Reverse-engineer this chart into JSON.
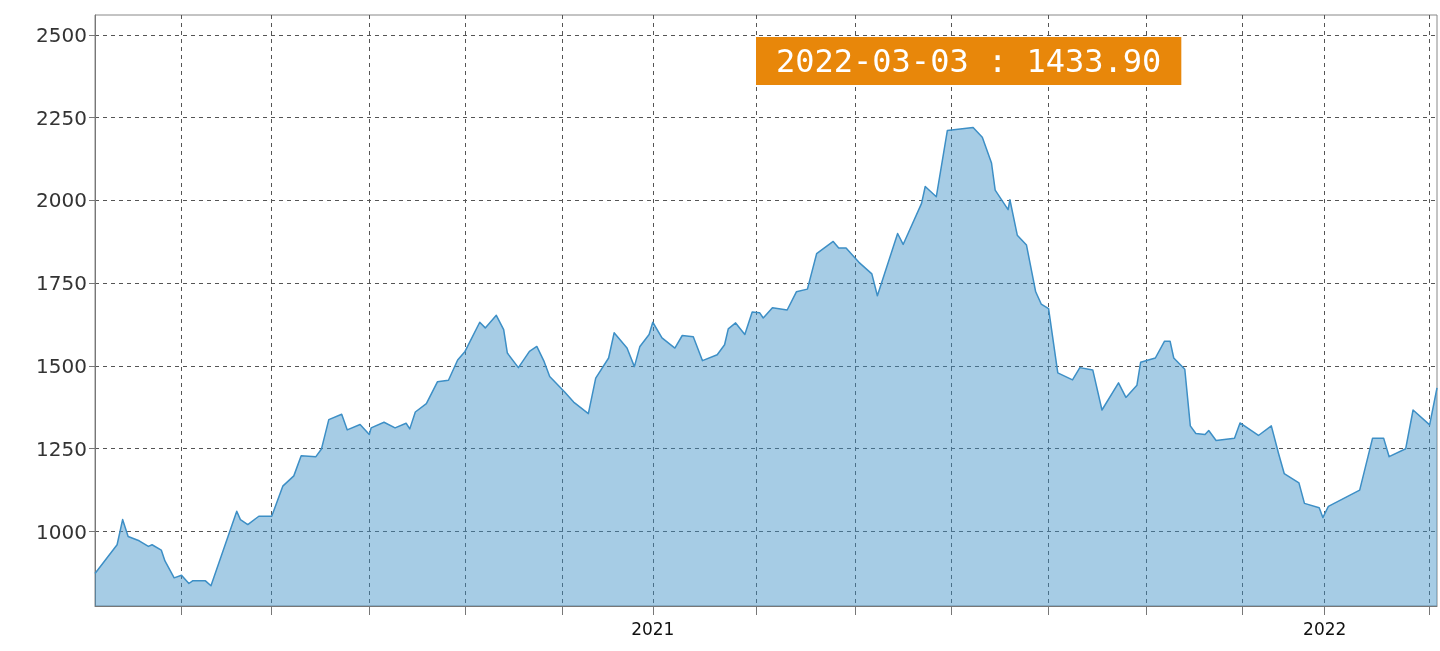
{
  "chart_data": {
    "type": "area",
    "x": [
      "2020-03-04",
      "2020-03-16",
      "2020-03-19",
      "2020-03-22",
      "2020-03-28",
      "2020-04-02",
      "2020-04-04",
      "2020-04-09",
      "2020-04-11",
      "2020-04-16",
      "2020-04-20",
      "2020-04-24",
      "2020-04-26",
      "2020-05-03",
      "2020-05-06",
      "2020-05-20",
      "2020-05-22",
      "2020-05-26",
      "2020-06-01",
      "2020-06-08",
      "2020-06-14",
      "2020-06-20",
      "2020-06-24",
      "2020-07-02",
      "2020-07-05",
      "2020-07-09",
      "2020-07-16",
      "2020-07-19",
      "2020-07-26",
      "2020-07-31",
      "2020-08-01",
      "2020-08-08",
      "2020-08-14",
      "2020-08-20",
      "2020-08-22",
      "2020-08-25",
      "2020-08-31",
      "2020-09-06",
      "2020-09-12",
      "2020-09-17",
      "2020-09-21",
      "2020-09-29",
      "2020-10-02",
      "2020-10-08",
      "2020-10-12",
      "2020-10-14",
      "2020-10-20",
      "2020-10-26",
      "2020-10-30",
      "2020-11-03",
      "2020-11-06",
      "2020-11-14",
      "2020-11-19",
      "2020-11-27",
      "2020-12-01",
      "2020-12-08",
      "2020-12-11",
      "2020-12-18",
      "2020-12-22",
      "2020-12-25",
      "2020-12-30",
      "2021-01-01",
      "2021-01-06",
      "2021-01-13",
      "2021-01-17",
      "2021-01-23",
      "2021-01-28",
      "2021-02-05",
      "2021-02-09",
      "2021-02-11",
      "2021-02-15",
      "2021-02-20",
      "2021-02-24",
      "2021-02-28",
      "2021-03-02",
      "2021-03-07",
      "2021-03-15",
      "2021-03-20",
      "2021-03-26",
      "2021-03-31",
      "2021-04-09",
      "2021-04-12",
      "2021-04-16",
      "2021-04-23",
      "2021-04-30",
      "2021-05-03",
      "2021-05-14",
      "2021-05-17",
      "2021-05-27",
      "2021-05-29",
      "2021-06-04",
      "2021-06-10",
      "2021-06-24",
      "2021-06-29",
      "2021-07-04",
      "2021-07-06",
      "2021-07-13",
      "2021-07-14",
      "2021-07-18",
      "2021-07-23",
      "2021-07-28",
      "2021-07-31",
      "2021-08-04",
      "2021-08-09",
      "2021-08-17",
      "2021-08-21",
      "2021-08-28",
      "2021-09-02",
      "2021-09-11",
      "2021-09-15",
      "2021-09-21",
      "2021-09-23",
      "2021-10-01",
      "2021-10-06",
      "2021-10-09",
      "2021-10-11",
      "2021-10-17",
      "2021-10-20",
      "2021-10-23",
      "2021-10-28",
      "2021-10-30",
      "2021-11-03",
      "2021-11-13",
      "2021-11-16",
      "2021-11-26",
      "2021-12-03",
      "2021-12-07",
      "2021-12-10",
      "2021-12-18",
      "2021-12-21",
      "2021-12-29",
      "2021-12-31",
      "2022-01-03",
      "2022-01-20",
      "2022-01-27",
      "2022-02-02",
      "2022-02-05",
      "2022-02-14",
      "2022-02-18",
      "2022-02-27",
      "2022-03-03"
    ],
    "series": [
      {
        "color": "#3d8fc6",
        "values": [
          873,
          960,
          1036,
          985,
          972,
          955,
          960,
          944,
          911,
          860,
          868,
          843,
          851,
          851,
          836,
          1061,
          1036,
          1021,
          1046,
          1046,
          1137,
          1168,
          1229,
          1226,
          1249,
          1338,
          1354,
          1307,
          1323,
          1293,
          1313,
          1330,
          1313,
          1327,
          1310,
          1361,
          1386,
          1452,
          1457,
          1518,
          1544,
          1632,
          1615,
          1653,
          1610,
          1539,
          1495,
          1544,
          1559,
          1513,
          1468,
          1422,
          1391,
          1356,
          1463,
          1524,
          1600,
          1554,
          1498,
          1559,
          1595,
          1632,
          1585,
          1554,
          1592,
          1588,
          1516,
          1534,
          1564,
          1612,
          1630,
          1595,
          1663,
          1661,
          1645,
          1676,
          1669,
          1724,
          1732,
          1839,
          1876,
          1856,
          1856,
          1813,
          1778,
          1712,
          1900,
          1867,
          1991,
          2042,
          2011,
          2211,
          2220,
          2191,
          2113,
          2031,
          1972,
          2002,
          1895,
          1865,
          1724,
          1687,
          1673,
          1479,
          1458,
          1495,
          1488,
          1367,
          1449,
          1405,
          1442,
          1511,
          1524,
          1575,
          1575,
          1524,
          1490,
          1319,
          1296,
          1293,
          1305,
          1275,
          1282,
          1328,
          1290,
          1319,
          1234,
          1175,
          1147,
          1085,
          1072,
          1042,
          1076,
          1125,
          1282,
          1282,
          1226,
          1250,
          1367,
          1322,
          1433.9
        ]
      }
    ],
    "xlim": [
      "2020-03-04",
      "2022-03-03"
    ],
    "xticks": [
      {
        "value": "2020-04-20",
        "label": null
      },
      {
        "value": "2020-06-08",
        "label": null
      },
      {
        "value": "2020-07-31",
        "label": null
      },
      {
        "value": "2020-09-21",
        "label": null
      },
      {
        "value": "2020-11-13",
        "label": null
      },
      {
        "value": "2021-01-01",
        "label": "2021"
      },
      {
        "value": "2021-02-26",
        "label": null
      },
      {
        "value": "2021-04-21",
        "label": null
      },
      {
        "value": "2021-06-12",
        "label": null
      },
      {
        "value": "2021-08-04",
        "label": null
      },
      {
        "value": "2021-09-26",
        "label": null
      },
      {
        "value": "2021-11-17",
        "label": null
      },
      {
        "value": "2022-01-01",
        "label": "2022"
      },
      {
        "value": "2022-02-27",
        "label": null
      }
    ],
    "ylim": [
      775,
      2560
    ],
    "yticks": [
      1000,
      1250,
      1500,
      1750,
      2000,
      2250,
      2500
    ],
    "grid": true,
    "annotations": [
      "2022-03-03 : 1433.90"
    ]
  }
}
